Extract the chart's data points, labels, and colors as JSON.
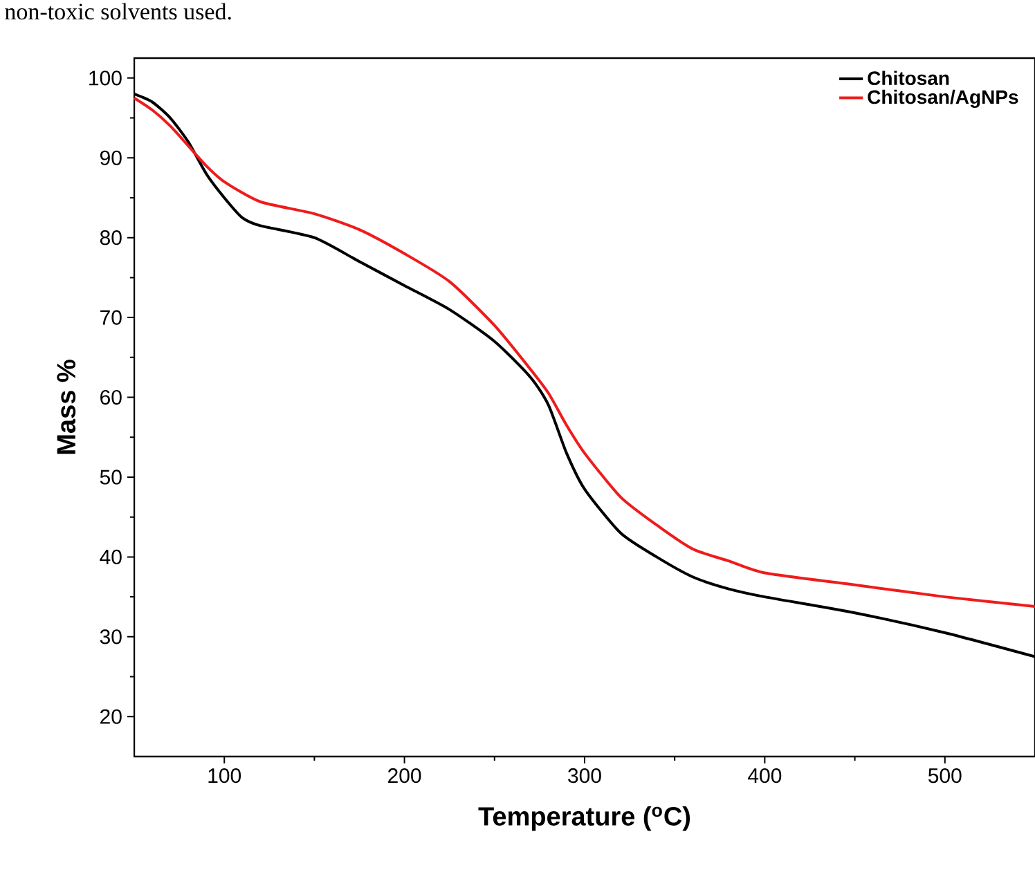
{
  "chart_data": {
    "type": "line",
    "xlabel": "Temperature ($^{o}$C)",
    "ylabel": "Mass %",
    "annotations": [
      "non-toxic solvents used."
    ],
    "xlim": [
      50,
      550
    ],
    "ylim": [
      15,
      102.5
    ],
    "xticks": [
      100,
      200,
      300,
      400,
      500
    ],
    "yticks": [
      20,
      30,
      40,
      50,
      60,
      70,
      80,
      90,
      100
    ],
    "legend": "top right",
    "line_style": "solid",
    "marker": "none",
    "series": [
      {
        "name": "Chitosan",
        "color": "#000000",
        "x": [
          50,
          60,
          70,
          80,
          90,
          100,
          110,
          120,
          150,
          175,
          200,
          225,
          250,
          270,
          280,
          290,
          300,
          320,
          340,
          360,
          380,
          400,
          450,
          500,
          550
        ],
        "values": [
          98,
          97,
          95,
          92,
          88,
          85,
          82.5,
          81.5,
          80,
          77,
          74,
          71,
          67,
          62.5,
          59,
          53,
          48.5,
          43,
          40,
          37.5,
          36,
          35,
          33,
          30.5,
          27.5
        ]
      },
      {
        "name": "Chitosan/AgNPs",
        "color": "#ee1c1c",
        "x": [
          50,
          60,
          70,
          80,
          90,
          100,
          120,
          150,
          175,
          200,
          225,
          250,
          270,
          280,
          290,
          300,
          320,
          340,
          360,
          380,
          400,
          450,
          500,
          550
        ],
        "values": [
          97.5,
          96,
          94,
          91.5,
          89,
          87,
          84.5,
          83,
          81,
          78,
          74.5,
          69,
          63.5,
          60.5,
          56.5,
          53,
          47.5,
          44,
          41,
          39.5,
          38,
          36.5,
          35,
          33.8
        ]
      }
    ]
  }
}
